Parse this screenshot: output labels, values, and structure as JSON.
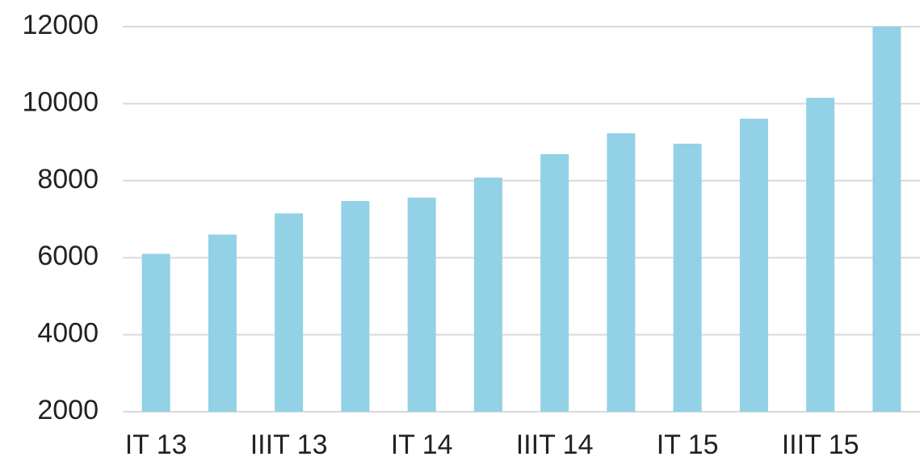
{
  "chart_data": {
    "type": "bar",
    "categories": [
      "IT 13",
      null,
      "IIIT 13",
      null,
      "IT 14",
      null,
      "IIIT 14",
      null,
      "IT 15",
      null,
      "IIIT 15",
      null
    ],
    "values": [
      6100,
      6600,
      7150,
      7470,
      7560,
      8080,
      8690,
      9230,
      8960,
      9610,
      10150,
      12000
    ],
    "color": "#92d1e6",
    "ylim": [
      2000,
      12000
    ],
    "yticks": [
      2000,
      4000,
      6000,
      8000,
      10000,
      12000
    ],
    "grid": true
  }
}
